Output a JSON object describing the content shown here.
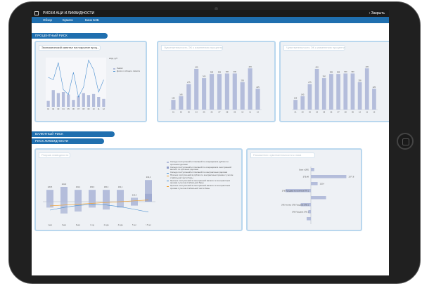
{
  "header": {
    "title": "РИСКИ АЦИ И ЛИКВИДНОСТИ",
    "close_label": "Закрыть"
  },
  "tabs": [
    "Обзор",
    "Бумаги",
    "Банк БЗБ"
  ],
  "sections": {
    "interest": "ПРОЦЕНТНЫЙ РИСК",
    "currency": "ВАЛЮТНЫЙ РИСК",
    "liquidity": "РИСК ЛИКВИДНОСТИ"
  },
  "panels": {
    "economic_capital": "Экономический капитал на покрытие проц...",
    "panel2": "Чувствительность ЭК к изменению процента",
    "panel3": "Чувствительность ЭК к изменению процента",
    "liquidity_gap": "Разрыв ликвидности",
    "liquidity_sources": "Показатели чувствительности к ликв"
  },
  "colors": {
    "bar": "#b4bddb",
    "bar_dark": "#8f9cc8",
    "line_blue": "#4a8fd0",
    "line_orange": "#f0a030",
    "accent": "#1f6faf"
  },
  "chart_data": [
    {
      "type": "bar",
      "title": "Экономический капитал на покрытие проц...",
      "categories": [
        "01",
        "02",
        "03",
        "04",
        "05",
        "06",
        "07",
        "08",
        "09",
        "10",
        "11",
        "12"
      ],
      "series": [
        {
          "name": "Лимит",
          "values": [
            12,
            34,
            28,
            30,
            25,
            14,
            22,
            28,
            24,
            26,
            20,
            16
          ]
        },
        {
          "name": "Доля от общего лимита",
          "values": [
            60,
            55,
            90,
            35,
            25,
            70,
            20,
            40,
            95,
            75,
            30,
            55
          ]
        }
      ],
      "ylabel": "млрд. руб"
    },
    {
      "type": "bar",
      "categories": [
        "Q1",
        "Q2",
        "Q3",
        "Q4",
        "Q5",
        "Q6",
        "Q7",
        "Q8",
        "Q9",
        "Q10",
        "Q11",
        "Q12"
      ],
      "values": [
        105,
        145,
        275,
        440,
        340,
        385,
        385,
        390,
        390,
        295,
        445,
        225
      ],
      "data_labels": [
        "105",
        "145",
        "275",
        "440",
        "340",
        "385",
        "385",
        "390",
        "390",
        "295",
        "445",
        "225"
      ]
    },
    {
      "type": "bar",
      "categories": [
        "Q1",
        "Q2",
        "Q3",
        "Q4",
        "Q5",
        "Q6",
        "Q7",
        "Q8",
        "Q9",
        "Q10",
        "Q11",
        "Q12"
      ],
      "values": [
        105,
        145,
        275,
        440,
        340,
        385,
        385,
        390,
        390,
        295,
        445,
        225
      ],
      "data_labels": [
        "105",
        "145",
        "275",
        "440",
        "340",
        "385",
        "385",
        "390",
        "390",
        "295",
        "445",
        "225"
      ]
    },
    {
      "type": "bar",
      "title": "Разрыв ликвидности",
      "categories": [
        "1 мес",
        "3 мес",
        "6 мес",
        "1 год",
        "2 года",
        "3 года",
        "5 лет",
        "> 5 лет"
      ],
      "series": [
        {
          "name": "Сальдо поступлений и списаний по операциям в рублях",
          "values": [
            12,
            15,
            12,
            12,
            12,
            12,
            -4,
            22
          ]
        },
        {
          "name": "Разрыв",
          "values": [
            -6,
            -12,
            -10,
            -6,
            -8,
            -6,
            4,
            8
          ]
        }
      ],
      "data_labels": [
        "220,5",
        "231,9",
        "191,2",
        "152,6",
        "160,2",
        "192,1",
        "213,3",
        "232,4"
      ],
      "legend": [
        "Сальдо поступлений и списаний по операциям в рублях по срочным сделкам",
        "Сальдо поступлений и списаний по операциям в иностранной валюте по срочным сделкам",
        "Сальдо поступлений и списаний по контрактным сделкам",
        "Прогноз поступлений в рублях по контрактным срокам с учетом стабильной части базы",
        "Прогноз поступлений в иностранной валюте по контрактным срокам с учетом стабильной базы",
        "Прогноз поступлений в иностранной валюте по контрактным срокам с учетом стабильной части базы"
      ]
    },
    {
      "type": "bar",
      "title": "Показатели чувствительности к ликв",
      "orientation": "horizontal",
      "categories": [
        "Банк в ЗПЕ",
        "ЗТБ,48",
        "",
        "ЗТБ Продажа на клиентов ПП 1",
        "",
        "ЗТБ Активы ЗТБ Продажа ЗТБ 1",
        "ЗТБ Продажа ЗТБ 1",
        ""
      ],
      "values": [
        4,
        42,
        8,
        -30,
        18,
        -12,
        -3,
        -5
      ],
      "data_labels": [
        "",
        "1977,8",
        "152,4",
        "",
        "",
        "",
        "",
        ""
      ]
    }
  ]
}
